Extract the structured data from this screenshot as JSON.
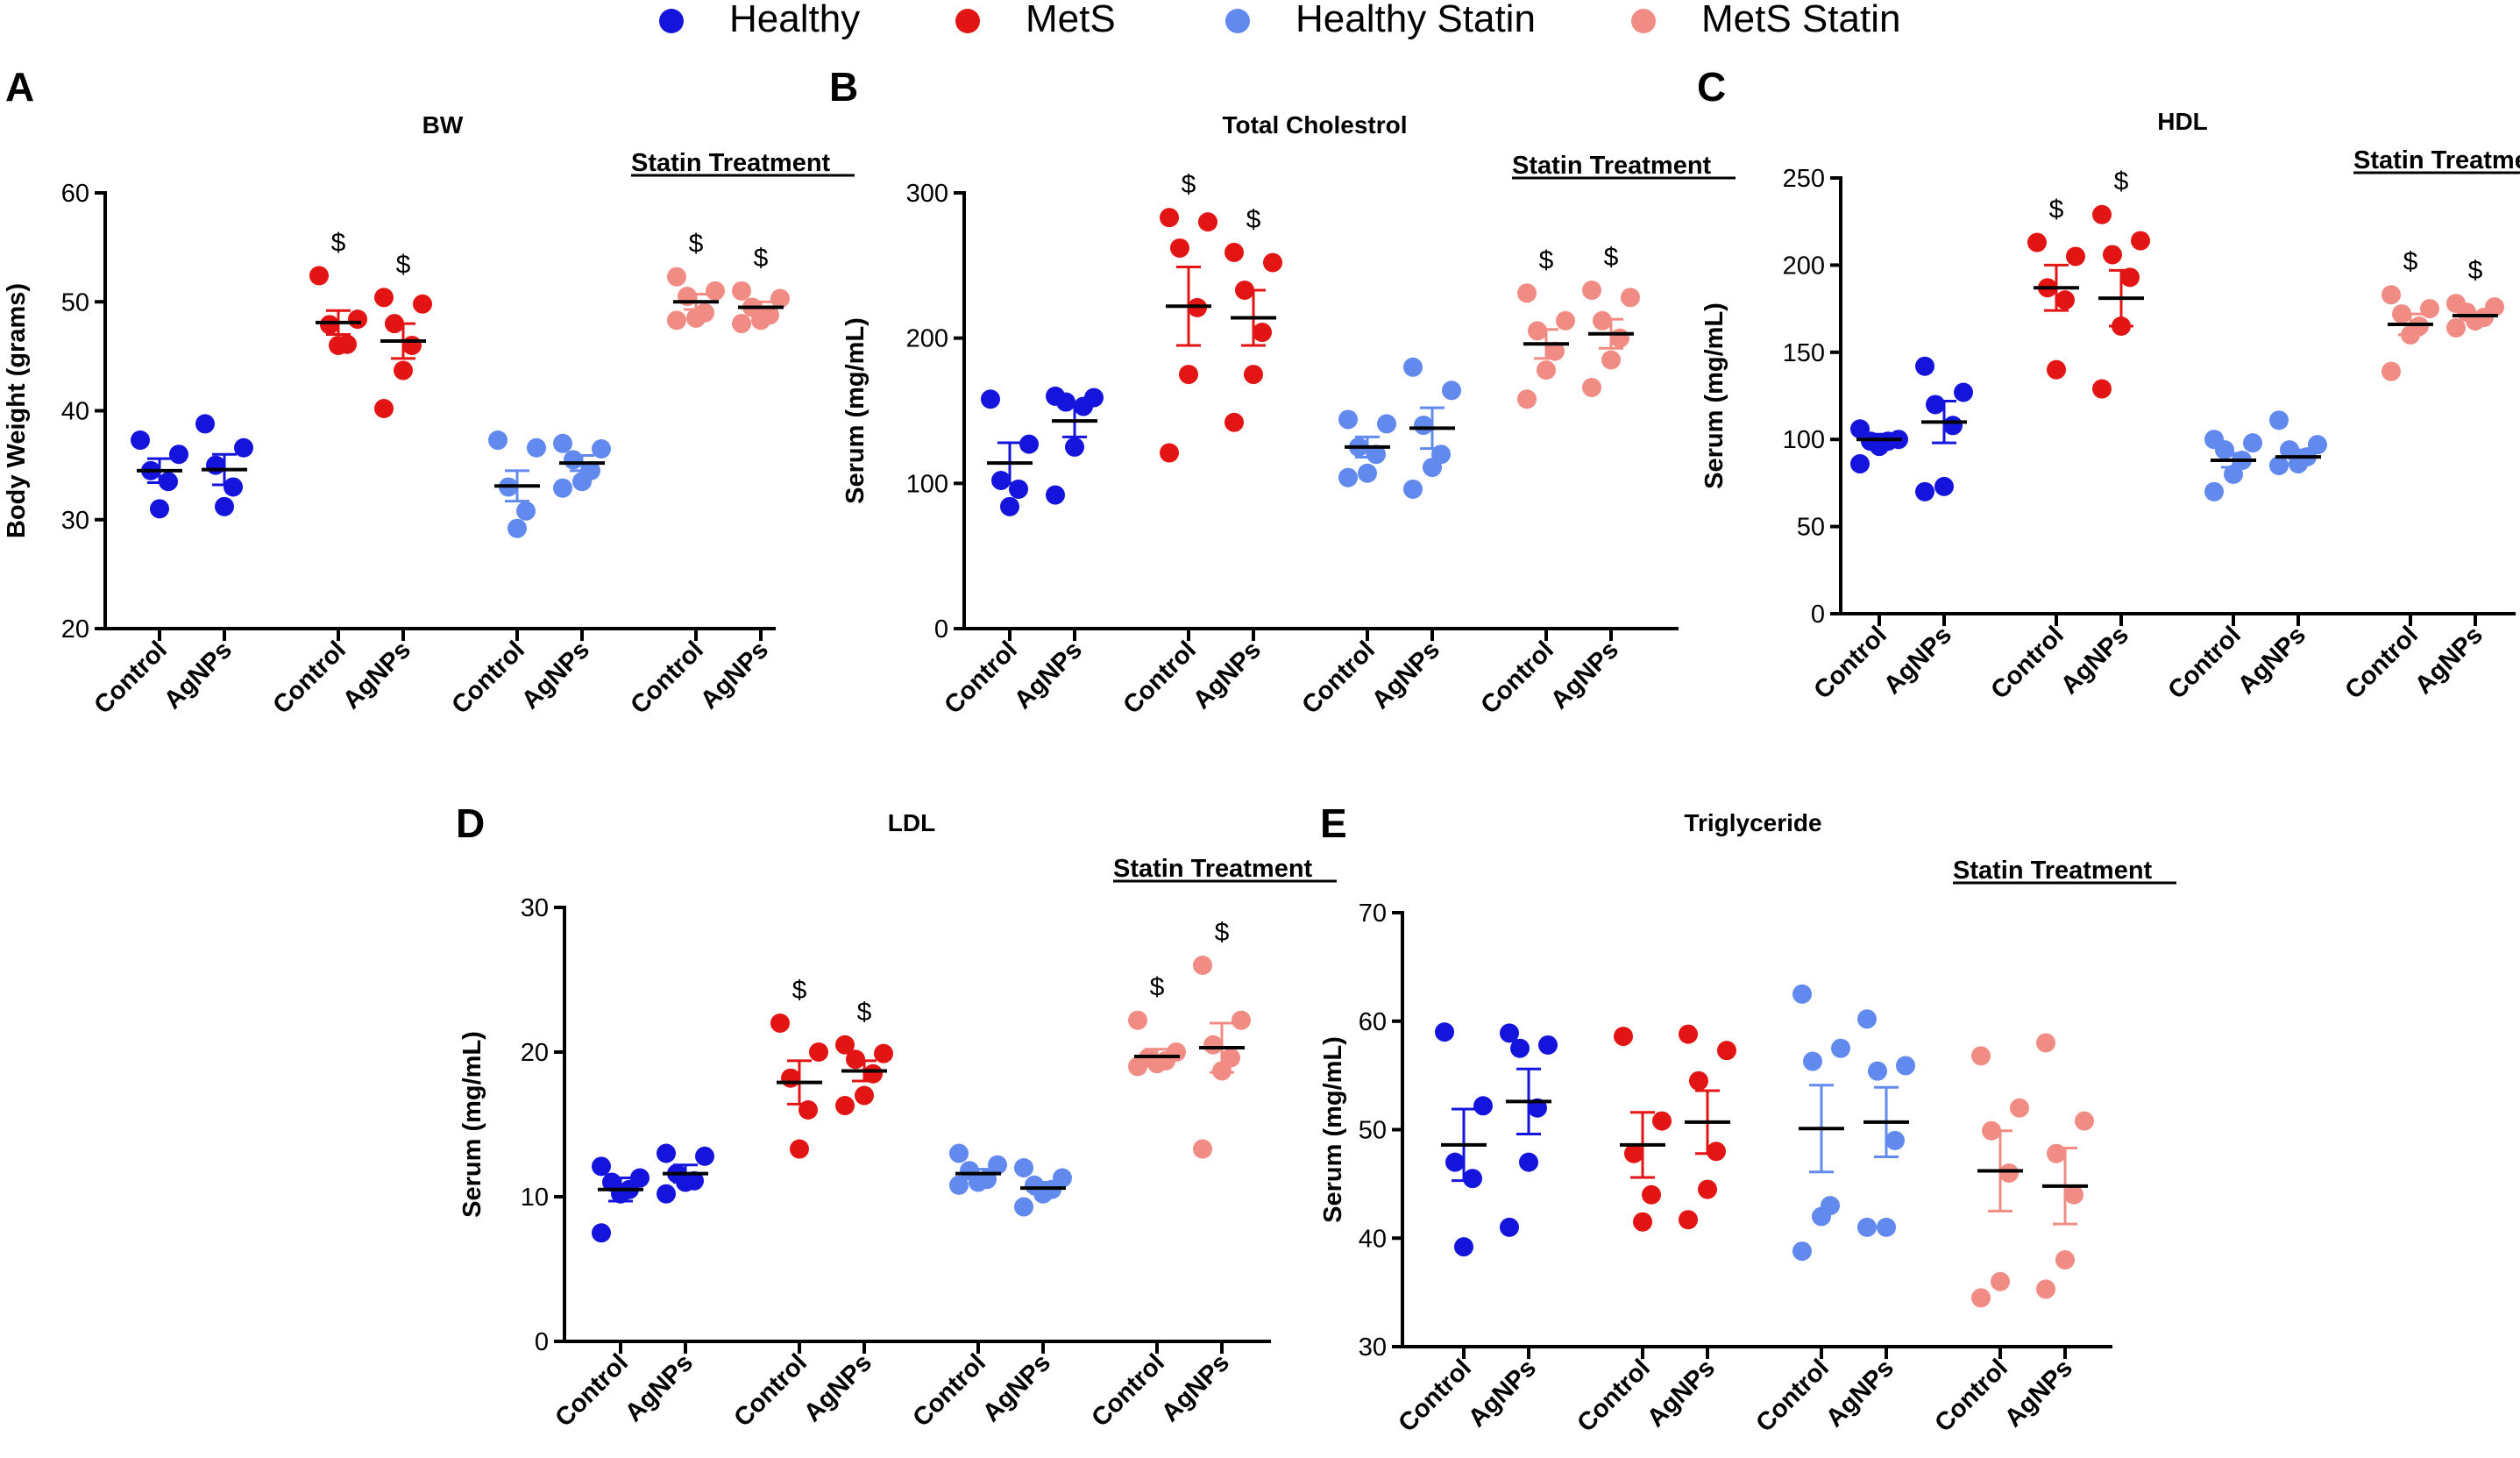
{
  "legend": [
    {
      "label": "Healthy",
      "color": "#1414dc"
    },
    {
      "label": "MetS",
      "color": "#e31414"
    },
    {
      "label": "Healthy Statin",
      "color": "#6189ee"
    },
    {
      "label": "MetS Statin",
      "color": "#f08c84"
    }
  ],
  "colors": {
    "Healthy": "#1414dc",
    "MetS": "#e31414",
    "Healthy Statin": "#6189ee",
    "MetS Statin": "#f08c84"
  },
  "annotation_text": {
    "statin": "Statin Treatment",
    "significance": "$"
  },
  "chart_data": [
    {
      "panel": "A",
      "type": "scatter",
      "title": "BW",
      "ylabel": "Body Weight (grams)",
      "ylim": [
        20,
        60
      ],
      "yticks": [
        20,
        30,
        40,
        50,
        60
      ],
      "categories": [
        "Control",
        "AgNPs",
        "Control",
        "AgNPs",
        "Control",
        "AgNPs",
        "Control",
        "AgNPs"
      ],
      "series": [
        {
          "name": "Healthy",
          "points": [
            [
              37.3,
              36.0,
              34.5,
              33.5,
              31.0
            ],
            [
              38.8,
              36.6,
              35.0,
              33.0,
              31.2
            ]
          ],
          "mean": [
            34.5,
            34.6
          ],
          "sem": [
            1.1,
            1.4
          ],
          "marks": [
            "",
            ""
          ]
        },
        {
          "name": "MetS",
          "points": [
            [
              52.4,
              48.4,
              47.9,
              46.1,
              46.0
            ],
            [
              50.4,
              49.8,
              48.0,
              46.0,
              43.7,
              40.2
            ]
          ],
          "mean": [
            48.1,
            46.4
          ],
          "sem": [
            1.1,
            1.6
          ],
          "marks": [
            "$",
            "$"
          ]
        },
        {
          "name": "Healthy Statin",
          "points": [
            [
              37.3,
              36.6,
              33.0,
              30.8,
              29.2
            ],
            [
              37.0,
              36.5,
              35.5,
              34.5,
              33.5,
              32.9
            ]
          ],
          "mean": [
            33.1,
            35.2
          ],
          "sem": [
            1.4,
            0.7
          ],
          "marks": [
            "",
            ""
          ]
        },
        {
          "name": "MetS Statin",
          "points": [
            [
              52.3,
              51.0,
              50.5,
              49.0,
              48.5,
              48.3
            ],
            [
              51.0,
              50.3,
              49.5,
              48.8,
              48.3,
              48.0
            ]
          ],
          "mean": [
            50.0,
            49.5
          ],
          "sem": [
            0.7,
            0.5
          ],
          "marks": [
            "$",
            "$"
          ]
        }
      ]
    },
    {
      "panel": "B",
      "type": "scatter",
      "title": "Total Cholestrol",
      "ylabel": "Serum (mg/mL)",
      "ylim": [
        0,
        300
      ],
      "yticks": [
        0,
        100,
        200,
        300
      ],
      "categories": [
        "Control",
        "AgNPs",
        "Control",
        "AgNPs",
        "Control",
        "AgNPs",
        "Control",
        "AgNPs"
      ],
      "series": [
        {
          "name": "Healthy",
          "points": [
            [
              158,
              127,
              102,
              96,
              84
            ],
            [
              160,
              159,
              156,
              153,
              125,
              92
            ]
          ],
          "mean": [
            114,
            143
          ],
          "sem": [
            14,
            11
          ],
          "marks": [
            "",
            ""
          ]
        },
        {
          "name": "MetS",
          "points": [
            [
              283,
              280,
              262,
              221,
              175,
              121
            ],
            [
              259,
              252,
              233,
              204,
              175,
              142
            ]
          ],
          "mean": [
            222,
            214
          ],
          "sem": [
            27,
            19
          ],
          "marks": [
            "$",
            "$"
          ]
        },
        {
          "name": "Healthy Statin",
          "points": [
            [
              144,
              141,
              125,
              120,
              107,
              104
            ],
            [
              180,
              164,
              140,
              120,
              111,
              96
            ]
          ],
          "mean": [
            125,
            138
          ],
          "sem": [
            7,
            14
          ],
          "marks": [
            "",
            ""
          ]
        },
        {
          "name": "MetS Statin",
          "points": [
            [
              231,
              212,
              205,
              191,
              178,
              158
            ],
            [
              233,
              228,
              212,
              200,
              185,
              166
            ]
          ],
          "mean": [
            196,
            203
          ],
          "sem": [
            10,
            10
          ],
          "marks": [
            "$",
            "$"
          ]
        }
      ]
    },
    {
      "panel": "C",
      "type": "scatter",
      "title": "HDL",
      "ylabel": "Serum (mg/mL)",
      "ylim": [
        0,
        250
      ],
      "yticks": [
        0,
        50,
        100,
        150,
        200,
        250
      ],
      "categories": [
        "Control",
        "AgNPs",
        "Control",
        "AgNPs",
        "Control",
        "AgNPs",
        "Control",
        "AgNPs"
      ],
      "series": [
        {
          "name": "Healthy",
          "points": [
            [
              106,
              100,
              99,
              99,
              96,
              86
            ],
            [
              142,
              127,
              120,
              108,
              73,
              70
            ]
          ],
          "mean": [
            100,
            110
          ],
          "sem": [
            3,
            12
          ],
          "marks": [
            "",
            ""
          ]
        },
        {
          "name": "MetS",
          "points": [
            [
              213,
              205,
              187,
              180,
              140
            ],
            [
              229,
              214,
              206,
              193,
              165,
              129
            ]
          ],
          "mean": [
            187,
            181
          ],
          "sem": [
            13,
            16
          ],
          "marks": [
            "$",
            "$"
          ]
        },
        {
          "name": "Healthy Statin",
          "points": [
            [
              100,
              98,
              94,
              88,
              80,
              70
            ],
            [
              111,
              97,
              94,
              90,
              86,
              85
            ]
          ],
          "mean": [
            88,
            90
          ],
          "sem": [
            4,
            4
          ],
          "marks": [
            "",
            ""
          ]
        },
        {
          "name": "MetS Statin",
          "points": [
            [
              183,
              175,
              172,
              165,
              160,
              139
            ],
            [
              178,
              176,
              173,
              170,
              168,
              164
            ]
          ],
          "mean": [
            166,
            171
          ],
          "sem": [
            6,
            2
          ],
          "marks": [
            "$",
            "$"
          ]
        }
      ]
    },
    {
      "panel": "D",
      "type": "scatter",
      "title": "LDL",
      "ylabel": "Serum (mg/mL)",
      "ylim": [
        0,
        30
      ],
      "yticks": [
        0,
        10,
        20,
        30
      ],
      "categories": [
        "Control",
        "AgNPs",
        "Control",
        "AgNPs",
        "Control",
        "AgNPs",
        "Control",
        "AgNPs"
      ],
      "series": [
        {
          "name": "Healthy",
          "points": [
            [
              12.1,
              11.3,
              11.0,
              10.5,
              10.2,
              7.5
            ],
            [
              13.0,
              12.8,
              11.6,
              11.1,
              11.0,
              10.2
            ]
          ],
          "mean": [
            10.5,
            11.6
          ],
          "sem": [
            0.8,
            0.6
          ],
          "marks": [
            "",
            ""
          ]
        },
        {
          "name": "MetS",
          "points": [
            [
              22.0,
              20.0,
              18.2,
              16.0,
              13.3
            ],
            [
              20.5,
              19.9,
              19.5,
              18.5,
              17.0,
              16.3
            ]
          ],
          "mean": [
            17.9,
            18.7
          ],
          "sem": [
            1.5,
            0.7
          ],
          "marks": [
            "$",
            "$"
          ]
        },
        {
          "name": "Healthy Statin",
          "points": [
            [
              13.0,
              12.2,
              11.8,
              11.2,
              11.0,
              10.8
            ],
            [
              12.0,
              11.3,
              10.8,
              10.5,
              10.2,
              9.3
            ]
          ],
          "mean": [
            11.6,
            10.6
          ],
          "sem": [
            0.3,
            0.4
          ],
          "marks": [
            "",
            ""
          ]
        },
        {
          "name": "MetS Statin",
          "points": [
            [
              22.2,
              20.0,
              19.6,
              19.4,
              19.2,
              19.0
            ],
            [
              26.0,
              22.2,
              20.5,
              19.6,
              18.7,
              13.3
            ]
          ],
          "mean": [
            19.7,
            20.3
          ],
          "sem": [
            0.5,
            1.7
          ],
          "marks": [
            "$",
            "$"
          ]
        }
      ]
    },
    {
      "panel": "E",
      "type": "scatter",
      "title": "Triglyceride",
      "ylabel": "Serum (mg/mL)",
      "ylim": [
        30,
        70
      ],
      "yticks": [
        30,
        40,
        50,
        60,
        70
      ],
      "categories": [
        "Control",
        "AgNPs",
        "Control",
        "AgNPs",
        "Control",
        "AgNPs",
        "Control",
        "AgNPs"
      ],
      "series": [
        {
          "name": "Healthy",
          "points": [
            [
              59.0,
              52.2,
              47.0,
              45.5,
              39.2
            ],
            [
              58.9,
              57.8,
              57.5,
              52.0,
              47.0,
              41.0
            ]
          ],
          "mean": [
            48.6,
            52.6
          ],
          "sem": [
            3.3,
            3.0
          ],
          "marks": [
            "",
            ""
          ]
        },
        {
          "name": "MetS",
          "points": [
            [
              58.6,
              50.8,
              47.8,
              44.0,
              41.5
            ],
            [
              58.8,
              57.3,
              54.5,
              48.0,
              44.5,
              41.7
            ]
          ],
          "mean": [
            48.6,
            50.7
          ],
          "sem": [
            3.0,
            2.9
          ],
          "marks": [
            "",
            ""
          ]
        },
        {
          "name": "Healthy Statin",
          "points": [
            [
              62.5,
              57.5,
              56.3,
              43.0,
              42.0,
              38.8
            ],
            [
              60.2,
              55.9,
              55.4,
              49.0,
              41.0,
              41.0
            ]
          ],
          "mean": [
            50.1,
            50.7
          ],
          "sem": [
            4.0,
            3.2
          ],
          "marks": [
            "",
            ""
          ]
        },
        {
          "name": "MetS Statin",
          "points": [
            [
              56.8,
              52.0,
              49.9,
              46.0,
              36.0,
              34.5
            ],
            [
              58.0,
              50.8,
              47.8,
              44.0,
              38.0,
              35.3
            ]
          ],
          "mean": [
            46.2,
            44.8
          ],
          "sem": [
            3.7,
            3.5
          ],
          "marks": [
            "",
            ""
          ]
        }
      ]
    }
  ]
}
